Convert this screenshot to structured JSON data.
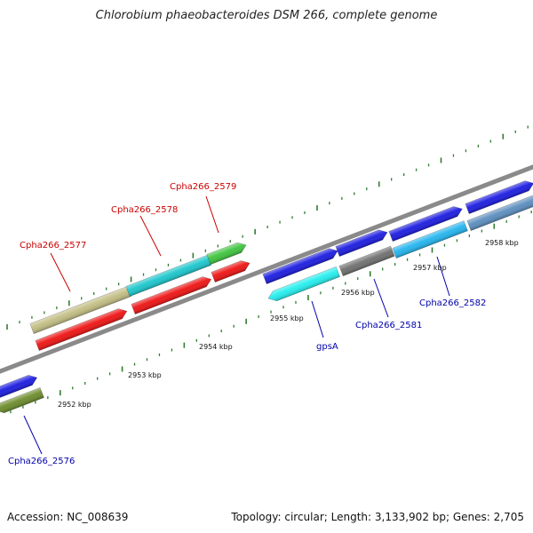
{
  "title": "Chlorobium phaeobacteroides DSM 266, complete genome",
  "footer": {
    "accession": "Accession: NC_008639",
    "summary": "Topology: circular; Length: 3,133,902 bp; Genes: 2,705"
  },
  "scale_labels": [
    "2952 kbp",
    "2953 kbp",
    "2954 kbp",
    "2955 kbp",
    "2956 kbp",
    "2957 kbp",
    "2958 kbp"
  ],
  "gene_labels": [
    {
      "text": "Cpha266_2577",
      "color": "#cc0000"
    },
    {
      "text": "Cpha266_2578",
      "color": "#cc0000"
    },
    {
      "text": "Cpha266_2579",
      "color": "#cc0000"
    },
    {
      "text": "Cpha266_2576",
      "color": "#0000aa"
    },
    {
      "text": "gpsA",
      "color": "#0000aa"
    },
    {
      "text": "Cpha266_2581",
      "color": "#0000aa"
    },
    {
      "text": "Cpha266_2582",
      "color": "#0000aa"
    }
  ],
  "colors": {
    "backbone": "#8a8a8a",
    "tick": "#2f7d2f",
    "red": "#ee1111",
    "blue": "#1a1ae0",
    "cyan": "#19c6cc",
    "olive": "#c2bd82",
    "green": "#3cc43c",
    "darkgreen": "#6b8a2a",
    "gray": "#6e6e6e",
    "skyblue": "#22b4ee",
    "steelblue": "#5a8cbe",
    "aqua": "#22eeee"
  }
}
